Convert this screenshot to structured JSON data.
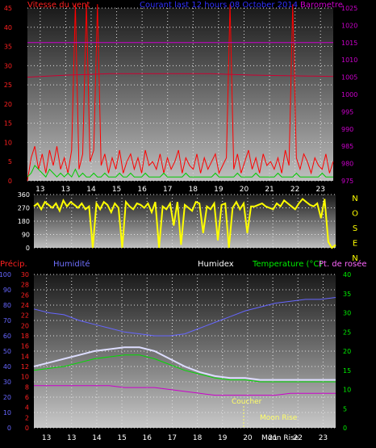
{
  "chart_data": [
    {
      "type": "line",
      "id": "wind",
      "title": "Courant last 12 hours 08 October 2014",
      "left_label": "Vitesse du vent",
      "right_label": "Barometre",
      "x_ticks": [
        "13",
        "13",
        "14",
        "15",
        "16",
        "17",
        "18",
        "19",
        "20",
        "21",
        "22",
        "23"
      ],
      "y_left_ticks": [
        "45",
        "40",
        "35",
        "30",
        "25",
        "20",
        "15",
        "10",
        "5",
        "0"
      ],
      "y_right_ticks": [
        "1025",
        "1020",
        "1015",
        "1010",
        "1005",
        "1000",
        "995",
        "990",
        "985",
        "980",
        "975"
      ],
      "ylim_left": [
        0,
        45
      ],
      "ylim_right": [
        975,
        1025
      ],
      "series": [
        {
          "color": "#ff0000",
          "values": [
            0,
            6,
            9,
            3,
            7,
            2,
            8,
            4,
            9,
            3,
            6,
            2,
            8,
            46,
            3,
            7,
            46,
            5,
            8,
            46,
            4,
            7,
            2,
            6,
            3,
            8,
            2,
            5,
            7,
            3,
            6,
            2,
            8,
            4,
            5,
            3,
            7,
            2,
            6,
            3,
            5,
            8,
            2,
            6,
            4,
            3,
            7,
            2,
            6,
            3,
            5,
            7,
            2,
            4,
            6,
            46,
            3,
            7,
            2,
            5,
            8,
            3,
            6,
            2,
            7,
            4,
            5,
            3,
            6,
            2,
            8,
            4,
            46,
            6,
            3,
            7,
            5,
            2,
            6,
            4,
            3,
            7,
            2,
            5
          ]
        },
        {
          "color": "#00cc00",
          "values": [
            1,
            2,
            4,
            3,
            2,
            1,
            3,
            2,
            1,
            2,
            1,
            2,
            1,
            3,
            1,
            2,
            1,
            1,
            2,
            1,
            1,
            2,
            1,
            1,
            1,
            2,
            1,
            1,
            2,
            1,
            1,
            1,
            2,
            1,
            1,
            1,
            1,
            2,
            1,
            1,
            1,
            1,
            1,
            2,
            1,
            1,
            1,
            1,
            1,
            1,
            1,
            2,
            1,
            1,
            1,
            1,
            1,
            2,
            1,
            1,
            1,
            1,
            2,
            1,
            1,
            1,
            1,
            1,
            2,
            1,
            1,
            1,
            1,
            2,
            1,
            1,
            1,
            1,
            1,
            1,
            2,
            1,
            1,
            1
          ]
        },
        {
          "color": "#cc00cc",
          "axis": "right",
          "values": [
            1015,
            1015,
            1015,
            1015,
            1015,
            1015,
            1015,
            1015,
            1015,
            1015,
            1015,
            1015,
            1015,
            1015,
            1015,
            1015
          ]
        },
        {
          "color": "#cc0033",
          "axis": "right",
          "values": [
            1005,
            1005.3,
            1005.6,
            1005.8,
            1006,
            1006,
            1006,
            1006,
            1006,
            1006,
            1005.8,
            1005.6,
            1005.5,
            1005.4,
            1005.3,
            1005.2
          ]
        }
      ]
    },
    {
      "type": "line",
      "id": "direction",
      "right_letters": [
        "N",
        "O",
        "S",
        "E",
        "N"
      ],
      "y_ticks": [
        "360",
        "270",
        "180",
        "90",
        "0"
      ],
      "ylim": [
        0,
        360
      ],
      "series": [
        {
          "color": "#ffff00",
          "values": [
            280,
            300,
            260,
            310,
            290,
            270,
            300,
            250,
            320,
            280,
            310,
            290,
            270,
            300,
            260,
            280,
            0,
            300,
            260,
            310,
            290,
            240,
            300,
            270,
            0,
            310,
            280,
            260,
            300,
            290,
            270,
            300,
            240,
            310,
            0,
            280,
            260,
            300,
            150,
            310,
            20,
            290,
            270,
            250,
            310,
            300,
            100,
            280,
            260,
            300,
            50,
            290,
            300,
            0,
            270,
            310,
            260,
            300,
            100,
            280,
            280,
            290,
            300,
            280,
            270,
            260,
            300,
            280,
            320,
            300,
            280,
            260,
            300,
            330,
            310,
            290,
            280,
            300,
            200,
            330,
            40,
            0,
            20
          ]
        }
      ]
    },
    {
      "type": "line",
      "id": "temperature",
      "labels": {
        "precip": "Précip.",
        "humidite": "Humidité",
        "humidex": "Humidex",
        "temperature": "Temperature (°C)",
        "rosee": "Pt. de rosée"
      },
      "y_precip_ticks": [
        "100",
        "90",
        "80",
        "70",
        "60",
        "50",
        "40",
        "30",
        "20",
        "10",
        "0"
      ],
      "y_humidex_ticks": [
        "30",
        "28",
        "26",
        "24",
        "22",
        "20",
        "18",
        "16",
        "14",
        "12",
        "10",
        "8",
        "6",
        "4",
        "2",
        "0"
      ],
      "y_temp_ticks": [
        "40",
        "35",
        "30",
        "25",
        "20",
        "15",
        "10",
        "5",
        "0"
      ],
      "x_ticks": [
        "13",
        "13",
        "14",
        "15",
        "16",
        "17",
        "18",
        "19",
        "20",
        "21",
        "22",
        "23"
      ],
      "annotations": {
        "sunset": "Coucher",
        "moonrise": "Moon Rise",
        "moonrise2": "Moon Rise"
      },
      "ylim": [
        0,
        40
      ],
      "series": [
        {
          "color": "#6666ff",
          "name": "Humidité",
          "values": [
            31,
            30,
            29.5,
            28,
            27,
            26,
            25,
            24.5,
            24,
            24,
            24.5,
            26,
            27.5,
            29,
            30.5,
            31.5,
            32.5,
            33,
            33.5,
            33.5,
            34
          ]
        },
        {
          "color": "#ddddff",
          "name": "Humidex",
          "values": [
            16,
            17,
            18,
            19,
            20,
            20.5,
            21,
            21,
            20,
            18,
            16,
            14.5,
            13.5,
            13,
            13,
            12.5,
            12.5,
            12.5,
            12.5,
            12.5,
            12.5
          ]
        },
        {
          "color": "#00dd00",
          "name": "Temperature",
          "values": [
            15,
            15.5,
            16,
            17,
            18,
            18.5,
            19,
            19,
            18,
            16.5,
            15,
            14,
            13,
            12.5,
            12.5,
            12,
            12,
            12,
            12,
            12,
            12
          ]
        },
        {
          "color": "#cc00cc",
          "name": "Pt. de rosée",
          "values": [
            11,
            11,
            11,
            11,
            11,
            11,
            10.5,
            10.5,
            10.5,
            10,
            9.5,
            9,
            8.5,
            8.5,
            8.5,
            8.5,
            8.5,
            9,
            9,
            9,
            9
          ]
        }
      ]
    }
  ]
}
